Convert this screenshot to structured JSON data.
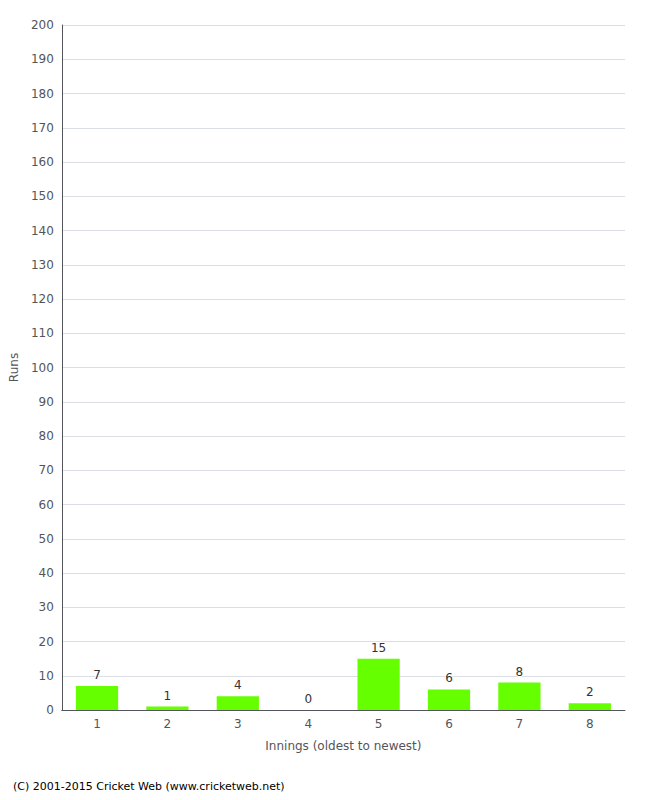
{
  "chart_data": {
    "type": "bar",
    "xlabel": "Innings (oldest to newest)",
    "ylabel": "Runs",
    "categories": [
      "1",
      "2",
      "3",
      "4",
      "5",
      "6",
      "7",
      "8"
    ],
    "values": [
      7,
      1,
      4,
      0,
      15,
      6,
      8,
      2
    ],
    "color": "#66ff00",
    "ylim": [
      0,
      200
    ],
    "yticks": [
      0,
      10,
      20,
      30,
      40,
      50,
      60,
      70,
      80,
      90,
      100,
      110,
      120,
      130,
      140,
      150,
      160,
      170,
      180,
      190,
      200
    ],
    "grid": true,
    "data_labels": true,
    "footer": "(C) 2001-2015 Cricket Web (www.cricketweb.net)"
  }
}
